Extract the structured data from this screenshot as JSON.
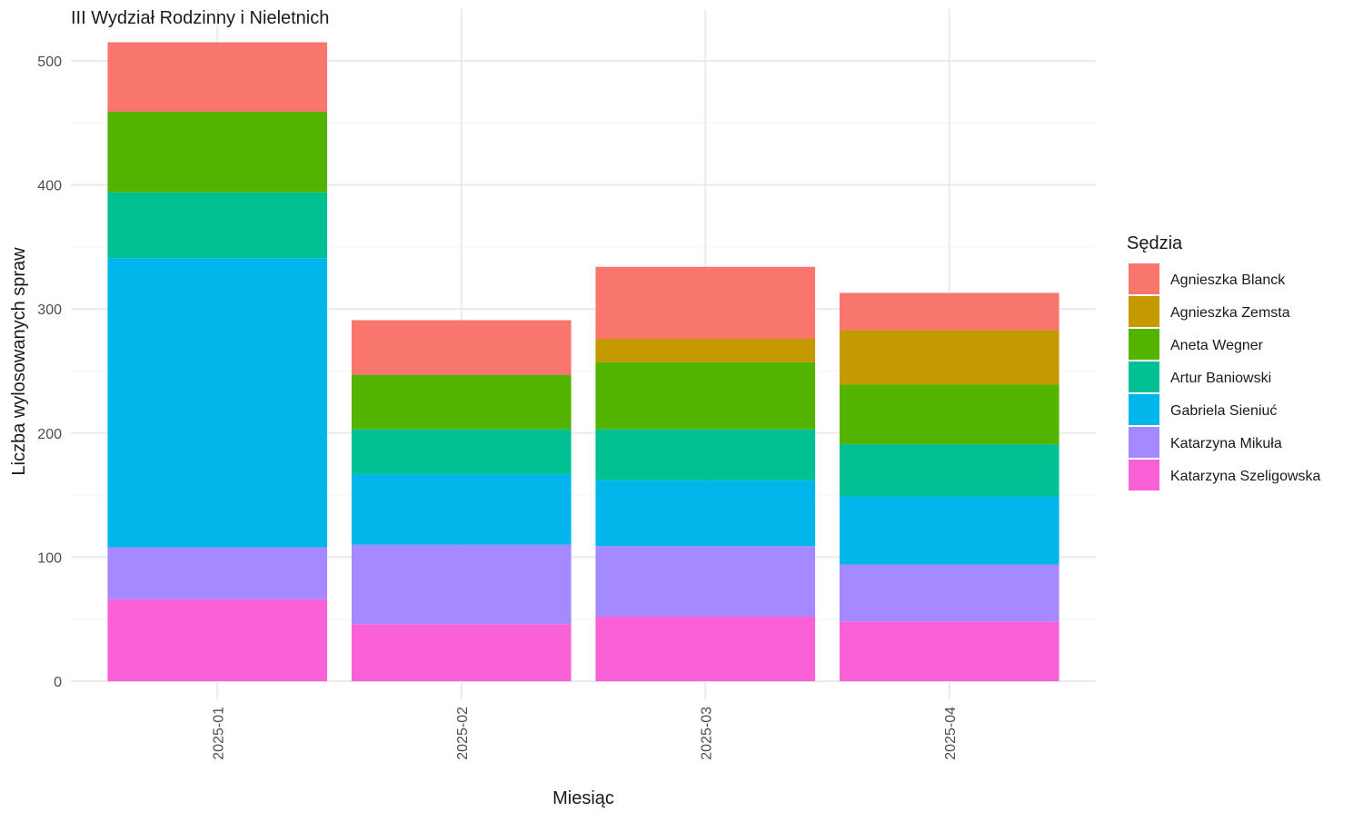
{
  "chart_data": {
    "type": "bar",
    "stacked": true,
    "title": "III Wydział Rodzinny i Nieletnich",
    "xlabel": "Miesiąc",
    "ylabel": "Liczba wylosowanych spraw",
    "categories": [
      "2025-01",
      "2025-02",
      "2025-03",
      "2025-04"
    ],
    "ylim": [
      0,
      530
    ],
    "yticks": [
      0,
      100,
      200,
      300,
      400,
      500
    ],
    "grid": true,
    "legend": {
      "title": "Sędzia",
      "position": "right"
    },
    "series": [
      {
        "name": "Katarzyna Szeligowska",
        "color": "#FB61D7",
        "values": [
          66,
          46,
          52,
          48
        ]
      },
      {
        "name": "Katarzyna Mikuła",
        "color": "#A58AFF",
        "values": [
          42,
          64,
          57,
          46
        ]
      },
      {
        "name": "Gabriela Sieniuć",
        "color": "#00B6EB",
        "values": [
          233,
          57,
          53,
          55
        ]
      },
      {
        "name": "Artur Baniowski",
        "color": "#00C094",
        "values": [
          53,
          36,
          41,
          42
        ]
      },
      {
        "name": "Aneta Wegner",
        "color": "#53B400",
        "values": [
          65,
          44,
          54,
          48
        ]
      },
      {
        "name": "Agnieszka Zemsta",
        "color": "#C49A00",
        "values": [
          0,
          0,
          19,
          44
        ]
      },
      {
        "name": "Agnieszka Blanck",
        "color": "#F8766D",
        "values": [
          56,
          44,
          58,
          30
        ]
      }
    ]
  }
}
